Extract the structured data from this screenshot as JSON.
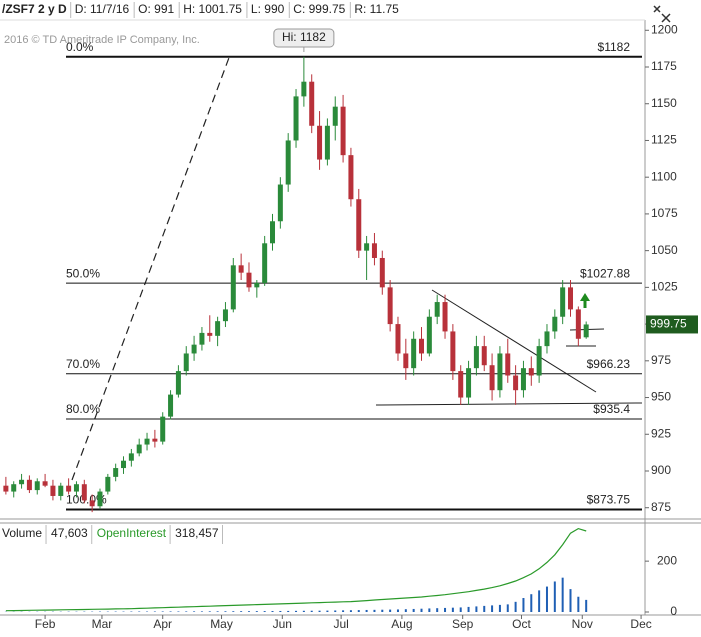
{
  "chart_data": {
    "type": "candlestick",
    "header": {
      "symbol": "/ZSF7 2 y D",
      "fields": [
        "D: 11/7/16",
        "O: 991",
        "H: 1001.75",
        "L: 990",
        "C: 999.75",
        "R: 11.75"
      ]
    },
    "watermark": "2016 © TD Ameritrade IP Company, Inc.",
    "hi_label": "Hi: 1182",
    "last_price": 999.75,
    "up_color": "#2a8a3a",
    "down_color": "#b8313a",
    "x": [
      12,
      16,
      20,
      24,
      28,
      32,
      36,
      40,
      44,
      48,
      52,
      56,
      60,
      64,
      68,
      72,
      76,
      80,
      84,
      88,
      92,
      96,
      100,
      104,
      108,
      112,
      116,
      120,
      124,
      128,
      132,
      136,
      140,
      144,
      148,
      152,
      156,
      160,
      164,
      168,
      172,
      176,
      180,
      184,
      188,
      192,
      196,
      200,
      204,
      208,
      212,
      216,
      220,
      224,
      228,
      232,
      236,
      240,
      244,
      248,
      252,
      256,
      260,
      264,
      268,
      272,
      276,
      280,
      284,
      288,
      292,
      296,
      300,
      304,
      308
    ],
    "open": [
      890,
      886,
      891,
      894,
      887,
      893,
      890,
      883,
      890,
      886,
      891,
      880,
      876,
      886,
      896,
      902,
      907,
      912,
      918,
      922,
      920,
      937,
      952,
      968,
      980,
      986,
      994,
      992,
      1002,
      1010,
      1040,
      1035,
      1025,
      1028,
      1055,
      1070,
      1095,
      1125,
      1155,
      1165,
      1135,
      1112,
      1135,
      1148,
      1115,
      1085,
      1050,
      1055,
      1045,
      1025,
      1000,
      980,
      970,
      990,
      980,
      1005,
      1015,
      995,
      968,
      950,
      970,
      985,
      972,
      955,
      980,
      965,
      955,
      970,
      965,
      985,
      995,
      1005,
      1025,
      1010,
      991
    ],
    "high": [
      896,
      893,
      898,
      897,
      895,
      898,
      894,
      892,
      895,
      893,
      894,
      884,
      888,
      898,
      905,
      910,
      915,
      922,
      926,
      928,
      940,
      955,
      972,
      985,
      992,
      998,
      1006,
      1005,
      1015,
      1045,
      1048,
      1042,
      1030,
      1060,
      1075,
      1100,
      1130,
      1160,
      1182,
      1170,
      1145,
      1140,
      1155,
      1156,
      1120,
      1092,
      1060,
      1062,
      1050,
      1030,
      1005,
      990,
      995,
      998,
      1010,
      1020,
      1020,
      1000,
      972,
      975,
      992,
      992,
      980,
      985,
      990,
      972,
      975,
      978,
      990,
      1000,
      1010,
      1030,
      1030,
      1012,
      1001.75
    ],
    "low": [
      884,
      882,
      888,
      885,
      884,
      889,
      880,
      880,
      884,
      882,
      878,
      872,
      874,
      884,
      893,
      898,
      903,
      910,
      914,
      916,
      918,
      935,
      950,
      965,
      975,
      982,
      988,
      985,
      998,
      1008,
      1030,
      1022,
      1018,
      1026,
      1050,
      1065,
      1090,
      1120,
      1148,
      1130,
      1105,
      1108,
      1125,
      1110,
      1080,
      1045,
      1030,
      1040,
      1020,
      995,
      975,
      962,
      965,
      975,
      978,
      1000,
      990,
      962,
      945,
      945,
      965,
      968,
      948,
      950,
      960,
      945,
      950,
      958,
      960,
      980,
      990,
      1000,
      1005,
      985,
      990
    ],
    "close": [
      886,
      891,
      894,
      887,
      893,
      890,
      883,
      890,
      886,
      891,
      880,
      876,
      886,
      896,
      902,
      907,
      912,
      918,
      922,
      920,
      937,
      952,
      968,
      980,
      986,
      994,
      992,
      1002,
      1010,
      1040,
      1035,
      1025,
      1028,
      1055,
      1070,
      1095,
      1125,
      1155,
      1165,
      1135,
      1112,
      1135,
      1148,
      1115,
      1085,
      1050,
      1055,
      1045,
      1025,
      1000,
      980,
      970,
      990,
      980,
      1005,
      1015,
      995,
      968,
      950,
      970,
      985,
      972,
      955,
      980,
      965,
      955,
      970,
      965,
      985,
      995,
      1005,
      1025,
      1010,
      990,
      999.75
    ],
    "levels": [
      {
        "label": "0.0%",
        "price_label": "$1182",
        "value": 1182
      },
      {
        "label": "50.0%",
        "price_label": "$1027.88",
        "value": 1027.88
      },
      {
        "label": "70.0%",
        "price_label": "$966.23",
        "value": 966.23
      },
      {
        "label": "80.0%",
        "price_label": "$935.4",
        "value": 935.4
      },
      {
        "label": "100.0%",
        "price_label": "$873.75",
        "value": 873.75
      }
    ],
    "xlim": [
      9,
      338
    ],
    "xticks": [
      {
        "value": 32,
        "label": "Feb"
      },
      {
        "value": 61,
        "label": "Mar"
      },
      {
        "value": 92,
        "label": "Apr"
      },
      {
        "value": 122,
        "label": "May"
      },
      {
        "value": 153,
        "label": "Jun"
      },
      {
        "value": 183,
        "label": "Jul"
      },
      {
        "value": 214,
        "label": "Aug"
      },
      {
        "value": 245,
        "label": "Sep"
      },
      {
        "value": 275,
        "label": "Oct"
      },
      {
        "value": 306,
        "label": "Nov"
      },
      {
        "value": 336,
        "label": "Dec"
      }
    ],
    "ylim": [
      868,
      1207
    ],
    "yticks": [
      875,
      900,
      925,
      950,
      975,
      1000,
      1025,
      1050,
      1075,
      1100,
      1125,
      1150,
      1175,
      1200
    ],
    "volume": {
      "name": "Volume",
      "color": "#1f5fb4",
      "last_label": "47,603",
      "values": [
        900,
        800,
        1000,
        900,
        1100,
        1000,
        1200,
        1100,
        1300,
        1200,
        1400,
        1300,
        1500,
        1400,
        1600,
        1500,
        1700,
        1800,
        1700,
        1900,
        2000,
        2100,
        2000,
        2200,
        2400,
        2300,
        2500,
        2600,
        2800,
        3000,
        3200,
        3100,
        3400,
        3600,
        3800,
        4000,
        4200,
        4500,
        4800,
        5000,
        5200,
        5500,
        6000,
        6500,
        7000,
        7500,
        8000,
        8500,
        9000,
        9500,
        10000,
        11000,
        12000,
        13000,
        14000,
        15000,
        16000,
        17000,
        18000,
        20000,
        22000,
        24000,
        26000,
        28000,
        30000,
        40000,
        55000,
        70000,
        85000,
        100000,
        120000,
        135000,
        90000,
        60000,
        47603
      ]
    },
    "open_interest": {
      "name": "OpenInterest",
      "color": "#2a9a2a",
      "last_label": "318,457",
      "values": [
        5000,
        5500,
        6000,
        6500,
        7000,
        7500,
        8000,
        8500,
        9000,
        9500,
        10000,
        10500,
        11000,
        11500,
        12000,
        12500,
        13000,
        14000,
        15000,
        16000,
        17000,
        18000,
        19000,
        20000,
        21000,
        22000,
        23000,
        24000,
        25000,
        26000,
        27000,
        28000,
        29000,
        30000,
        31000,
        32000,
        33000,
        34000,
        35000,
        36000,
        37000,
        38000,
        39000,
        40000,
        41000,
        43000,
        45000,
        47000,
        49000,
        51000,
        53000,
        55000,
        57000,
        59000,
        62000,
        65000,
        68000,
        72000,
        76000,
        80000,
        85000,
        90000,
        96000,
        103000,
        112000,
        122000,
        135000,
        150000,
        170000,
        195000,
        225000,
        265000,
        310000,
        328000,
        318457
      ]
    },
    "vlim": [
      0,
      350000
    ],
    "vticks": [
      {
        "value": 0,
        "label": "0"
      },
      {
        "value": 200000,
        "label": "200"
      }
    ]
  }
}
